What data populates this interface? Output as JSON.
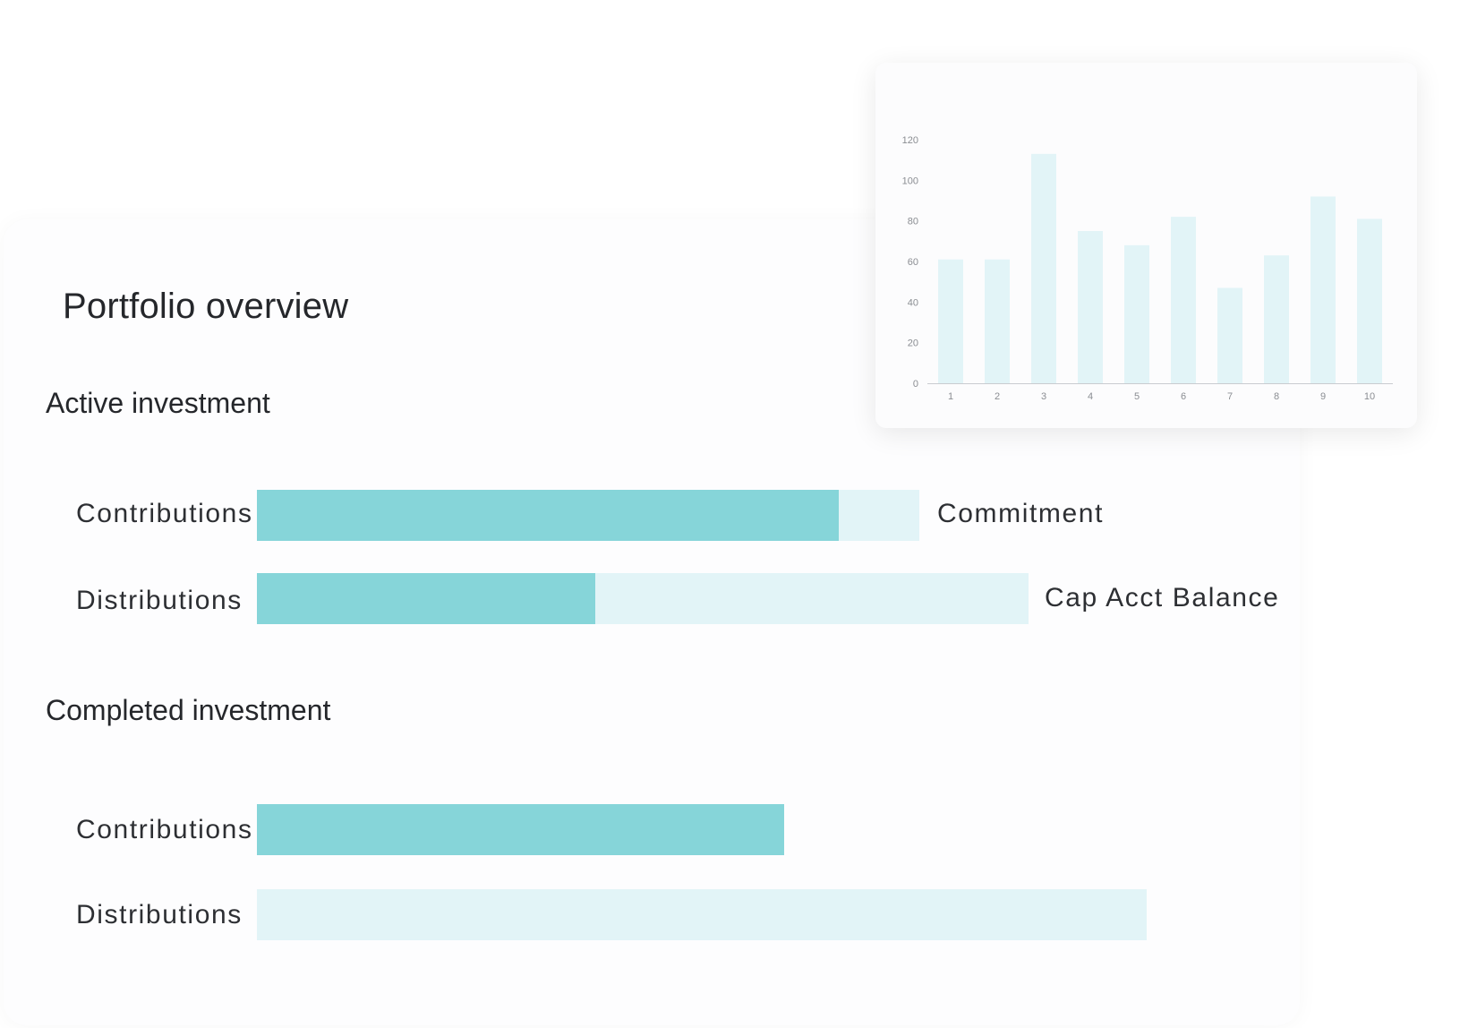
{
  "page": {
    "title": "Portfolio overview"
  },
  "active": {
    "heading": "Active investment",
    "rows": [
      {
        "label": "Contributions",
        "end_label": "Commitment",
        "fill_fraction": 0.878
      },
      {
        "label": "Distributions",
        "end_label": "Cap Acct Balance",
        "fill_fraction": 0.438
      }
    ]
  },
  "completed": {
    "heading": "Completed investment",
    "rows": [
      {
        "label": "Contributions",
        "fill_fraction": 1.0
      },
      {
        "label": "Distributions",
        "fill_fraction": 0.0
      }
    ]
  },
  "colors": {
    "bar_fill": "#86d5d9",
    "bar_track": "#e2f4f7",
    "chart_bar": "#e2f4f7",
    "text": "#25272b"
  },
  "chart_data": {
    "type": "bar",
    "categories": [
      "1",
      "2",
      "3",
      "4",
      "5",
      "6",
      "7",
      "8",
      "9",
      "10"
    ],
    "values": [
      61,
      61,
      113,
      75,
      68,
      82,
      47,
      63,
      92,
      81
    ],
    "ylim": [
      0,
      120
    ],
    "yticks": [
      0,
      20,
      40,
      60,
      80,
      100,
      120
    ],
    "title": "",
    "xlabel": "",
    "ylabel": "",
    "grid": false
  }
}
